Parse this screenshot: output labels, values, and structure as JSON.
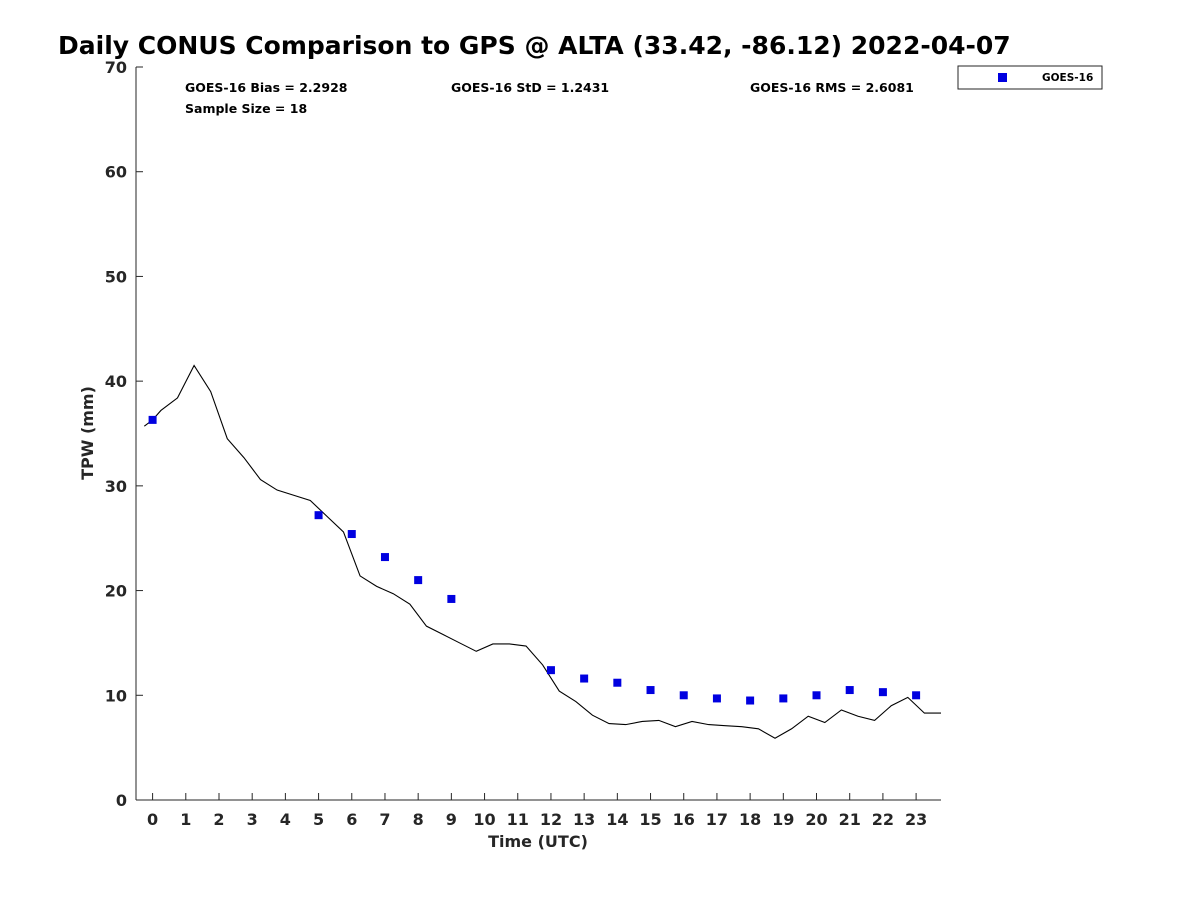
{
  "chart_data": {
    "type": "scatter",
    "title": "Daily CONUS Comparison to GPS @ ALTA (33.42, -86.12) 2022-04-07",
    "xlabel": "Time (UTC)",
    "ylabel": "TPW (mm)",
    "xlim": [
      -0.5,
      23.75
    ],
    "ylim": [
      0,
      70
    ],
    "x_ticks": [
      "0",
      "1",
      "2",
      "3",
      "4",
      "5",
      "6",
      "7",
      "8",
      "9",
      "10",
      "11",
      "12",
      "13",
      "14",
      "15",
      "16",
      "17",
      "18",
      "19",
      "20",
      "21",
      "22",
      "23"
    ],
    "y_ticks": [
      "0",
      "10",
      "20",
      "30",
      "40",
      "50",
      "60",
      "70"
    ],
    "grid": false,
    "legend_position": "top-right",
    "stats": {
      "bias": "GOES-16 Bias = 2.2928",
      "std": "GOES-16 StD = 1.2431",
      "rms": "GOES-16 RMS = 2.6081",
      "sample": "Sample Size = 18"
    },
    "series": [
      {
        "name": "GOES-16",
        "kind": "markers",
        "color": "#0000e0",
        "points": [
          [
            0.0,
            36.3
          ],
          [
            5.0,
            27.2
          ],
          [
            6.0,
            25.4
          ],
          [
            7.0,
            23.2
          ],
          [
            8.0,
            21.0
          ],
          [
            9.0,
            19.2
          ],
          [
            12.0,
            12.4
          ],
          [
            13.0,
            11.6
          ],
          [
            14.0,
            11.2
          ],
          [
            15.0,
            10.5
          ],
          [
            16.0,
            10.0
          ],
          [
            17.0,
            9.7
          ],
          [
            18.0,
            9.5
          ],
          [
            19.0,
            9.7
          ],
          [
            20.0,
            10.0
          ],
          [
            21.0,
            10.5
          ],
          [
            22.0,
            10.3
          ],
          [
            23.0,
            10.0
          ]
        ]
      },
      {
        "kind": "line",
        "color": "#000000",
        "points": [
          [
            -0.25,
            35.7
          ],
          [
            0.0,
            36.3
          ],
          [
            0.25,
            37.2
          ],
          [
            0.75,
            38.4
          ],
          [
            1.25,
            41.5
          ],
          [
            1.75,
            39.0
          ],
          [
            2.25,
            34.5
          ],
          [
            2.75,
            32.7
          ],
          [
            3.25,
            30.6
          ],
          [
            3.75,
            29.6
          ],
          [
            4.25,
            29.1
          ],
          [
            4.75,
            28.6
          ],
          [
            5.25,
            27.1
          ],
          [
            5.75,
            25.6
          ],
          [
            6.25,
            21.4
          ],
          [
            6.75,
            20.4
          ],
          [
            7.25,
            19.7
          ],
          [
            7.75,
            18.7
          ],
          [
            8.25,
            16.6
          ],
          [
            8.75,
            15.8
          ],
          [
            9.25,
            15.0
          ],
          [
            9.75,
            14.2
          ],
          [
            10.25,
            14.9
          ],
          [
            10.75,
            14.9
          ],
          [
            11.25,
            14.7
          ],
          [
            11.75,
            12.9
          ],
          [
            12.25,
            10.4
          ],
          [
            12.75,
            9.4
          ],
          [
            13.25,
            8.1
          ],
          [
            13.75,
            7.3
          ],
          [
            14.25,
            7.2
          ],
          [
            14.75,
            7.5
          ],
          [
            15.25,
            7.6
          ],
          [
            15.75,
            7.0
          ],
          [
            16.25,
            7.5
          ],
          [
            16.75,
            7.2
          ],
          [
            17.25,
            7.1
          ],
          [
            17.75,
            7.0
          ],
          [
            18.25,
            6.8
          ],
          [
            18.75,
            5.9
          ],
          [
            19.25,
            6.8
          ],
          [
            19.75,
            8.0
          ],
          [
            20.25,
            7.4
          ],
          [
            20.75,
            8.6
          ],
          [
            21.25,
            8.0
          ],
          [
            21.75,
            7.6
          ],
          [
            22.25,
            9.0
          ],
          [
            22.75,
            9.8
          ],
          [
            23.25,
            8.3
          ],
          [
            23.75,
            8.3
          ]
        ]
      }
    ]
  }
}
